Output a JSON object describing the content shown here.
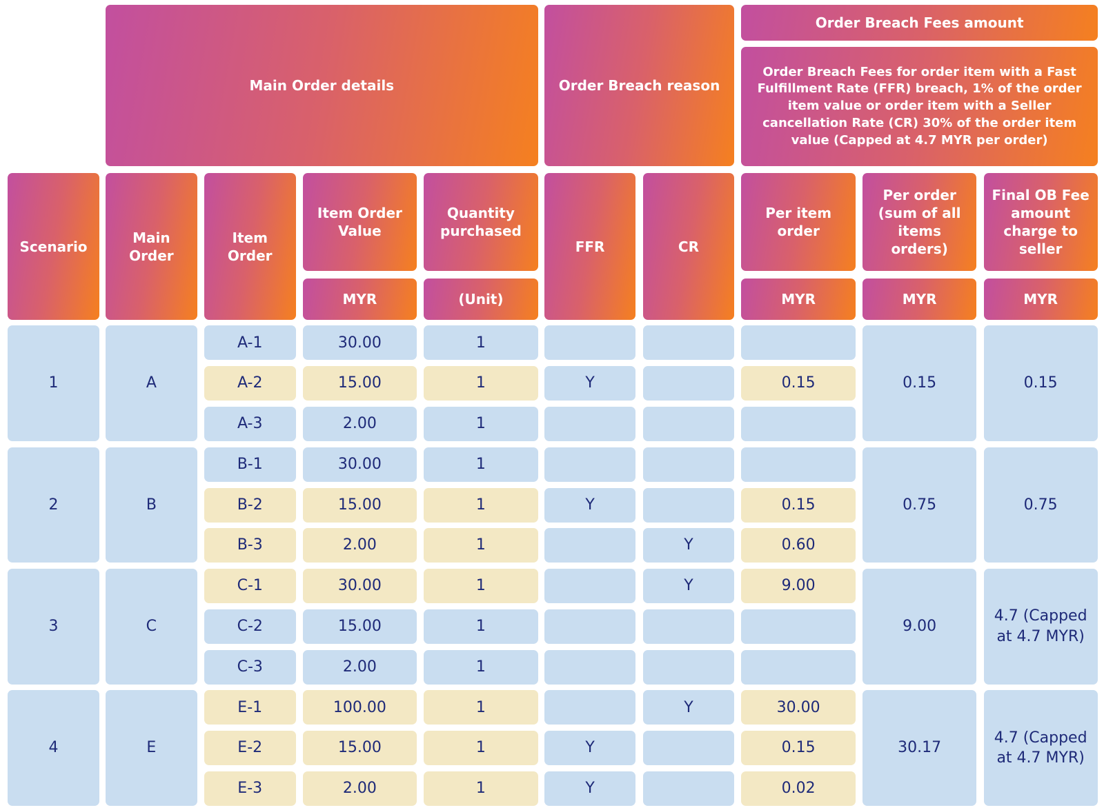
{
  "header": {
    "groups": [
      {
        "title": "Main Order details"
      },
      {
        "title": "Order Breach reason"
      },
      {
        "title": "Order Breach Fees amount",
        "description": "Order Breach Fees for order item with a Fast Fulfillment Rate (FFR) breach, 1% of the order item value or order item with a Seller cancellation Rate (CR) 30% of the order item value (Capped at 4.7 MYR per order)"
      }
    ],
    "columns": [
      {
        "label": "Scenario"
      },
      {
        "label": "Main Order"
      },
      {
        "label": "Item Order"
      },
      {
        "label": "Item Order Value",
        "unit": "MYR"
      },
      {
        "label": "Quantity purchased",
        "unit": "(Unit)"
      },
      {
        "label": "FFR"
      },
      {
        "label": "CR"
      },
      {
        "label": "Per item order",
        "unit": "MYR"
      },
      {
        "label": "Per order (sum of all items orders)",
        "unit": "MYR"
      },
      {
        "label": "Final OB Fee amount charge to seller",
        "unit": "MYR"
      }
    ]
  },
  "scenarios": [
    {
      "scenario": "1",
      "main_order": "A",
      "per_order": "0.15",
      "final_fee": "0.15",
      "items": [
        {
          "item": "A-1",
          "value": "30.00",
          "quantity": "1",
          "ffr": null,
          "cr": null,
          "per_item": null
        },
        {
          "item": "A-2",
          "value": "15.00",
          "quantity": "1",
          "ffr": "Y",
          "cr": null,
          "per_item": "0.15"
        },
        {
          "item": "A-3",
          "value": "2.00",
          "quantity": "1",
          "ffr": null,
          "cr": null,
          "per_item": null
        }
      ]
    },
    {
      "scenario": "2",
      "main_order": "B",
      "per_order": "0.75",
      "final_fee": "0.75",
      "items": [
        {
          "item": "B-1",
          "value": "30.00",
          "quantity": "1",
          "ffr": null,
          "cr": null,
          "per_item": null
        },
        {
          "item": "B-2",
          "value": "15.00",
          "quantity": "1",
          "ffr": "Y",
          "cr": null,
          "per_item": "0.15"
        },
        {
          "item": "B-3",
          "value": "2.00",
          "quantity": "1",
          "ffr": null,
          "cr": "Y",
          "per_item": "0.60"
        }
      ]
    },
    {
      "scenario": "3",
      "main_order": "C",
      "per_order": "9.00",
      "final_fee": "4.7 (Capped at 4.7 MYR)",
      "items": [
        {
          "item": "C-1",
          "value": "30.00",
          "quantity": "1",
          "ffr": null,
          "cr": "Y",
          "per_item": "9.00"
        },
        {
          "item": "C-2",
          "value": "15.00",
          "quantity": "1",
          "ffr": null,
          "cr": null,
          "per_item": null
        },
        {
          "item": "C-3",
          "value": "2.00",
          "quantity": "1",
          "ffr": null,
          "cr": null,
          "per_item": null
        }
      ]
    },
    {
      "scenario": "4",
      "main_order": "E",
      "per_order": "30.17",
      "final_fee": "4.7 (Capped at 4.7 MYR)",
      "items": [
        {
          "item": "E-1",
          "value": "100.00",
          "quantity": "1",
          "ffr": null,
          "cr": "Y",
          "per_item": "30.00"
        },
        {
          "item": "E-2",
          "value": "15.00",
          "quantity": "1",
          "ffr": "Y",
          "cr": null,
          "per_item": "0.15"
        },
        {
          "item": "E-3",
          "value": "2.00",
          "quantity": "1",
          "ffr": "Y",
          "cr": null,
          "per_item": "0.02"
        }
      ]
    }
  ]
}
